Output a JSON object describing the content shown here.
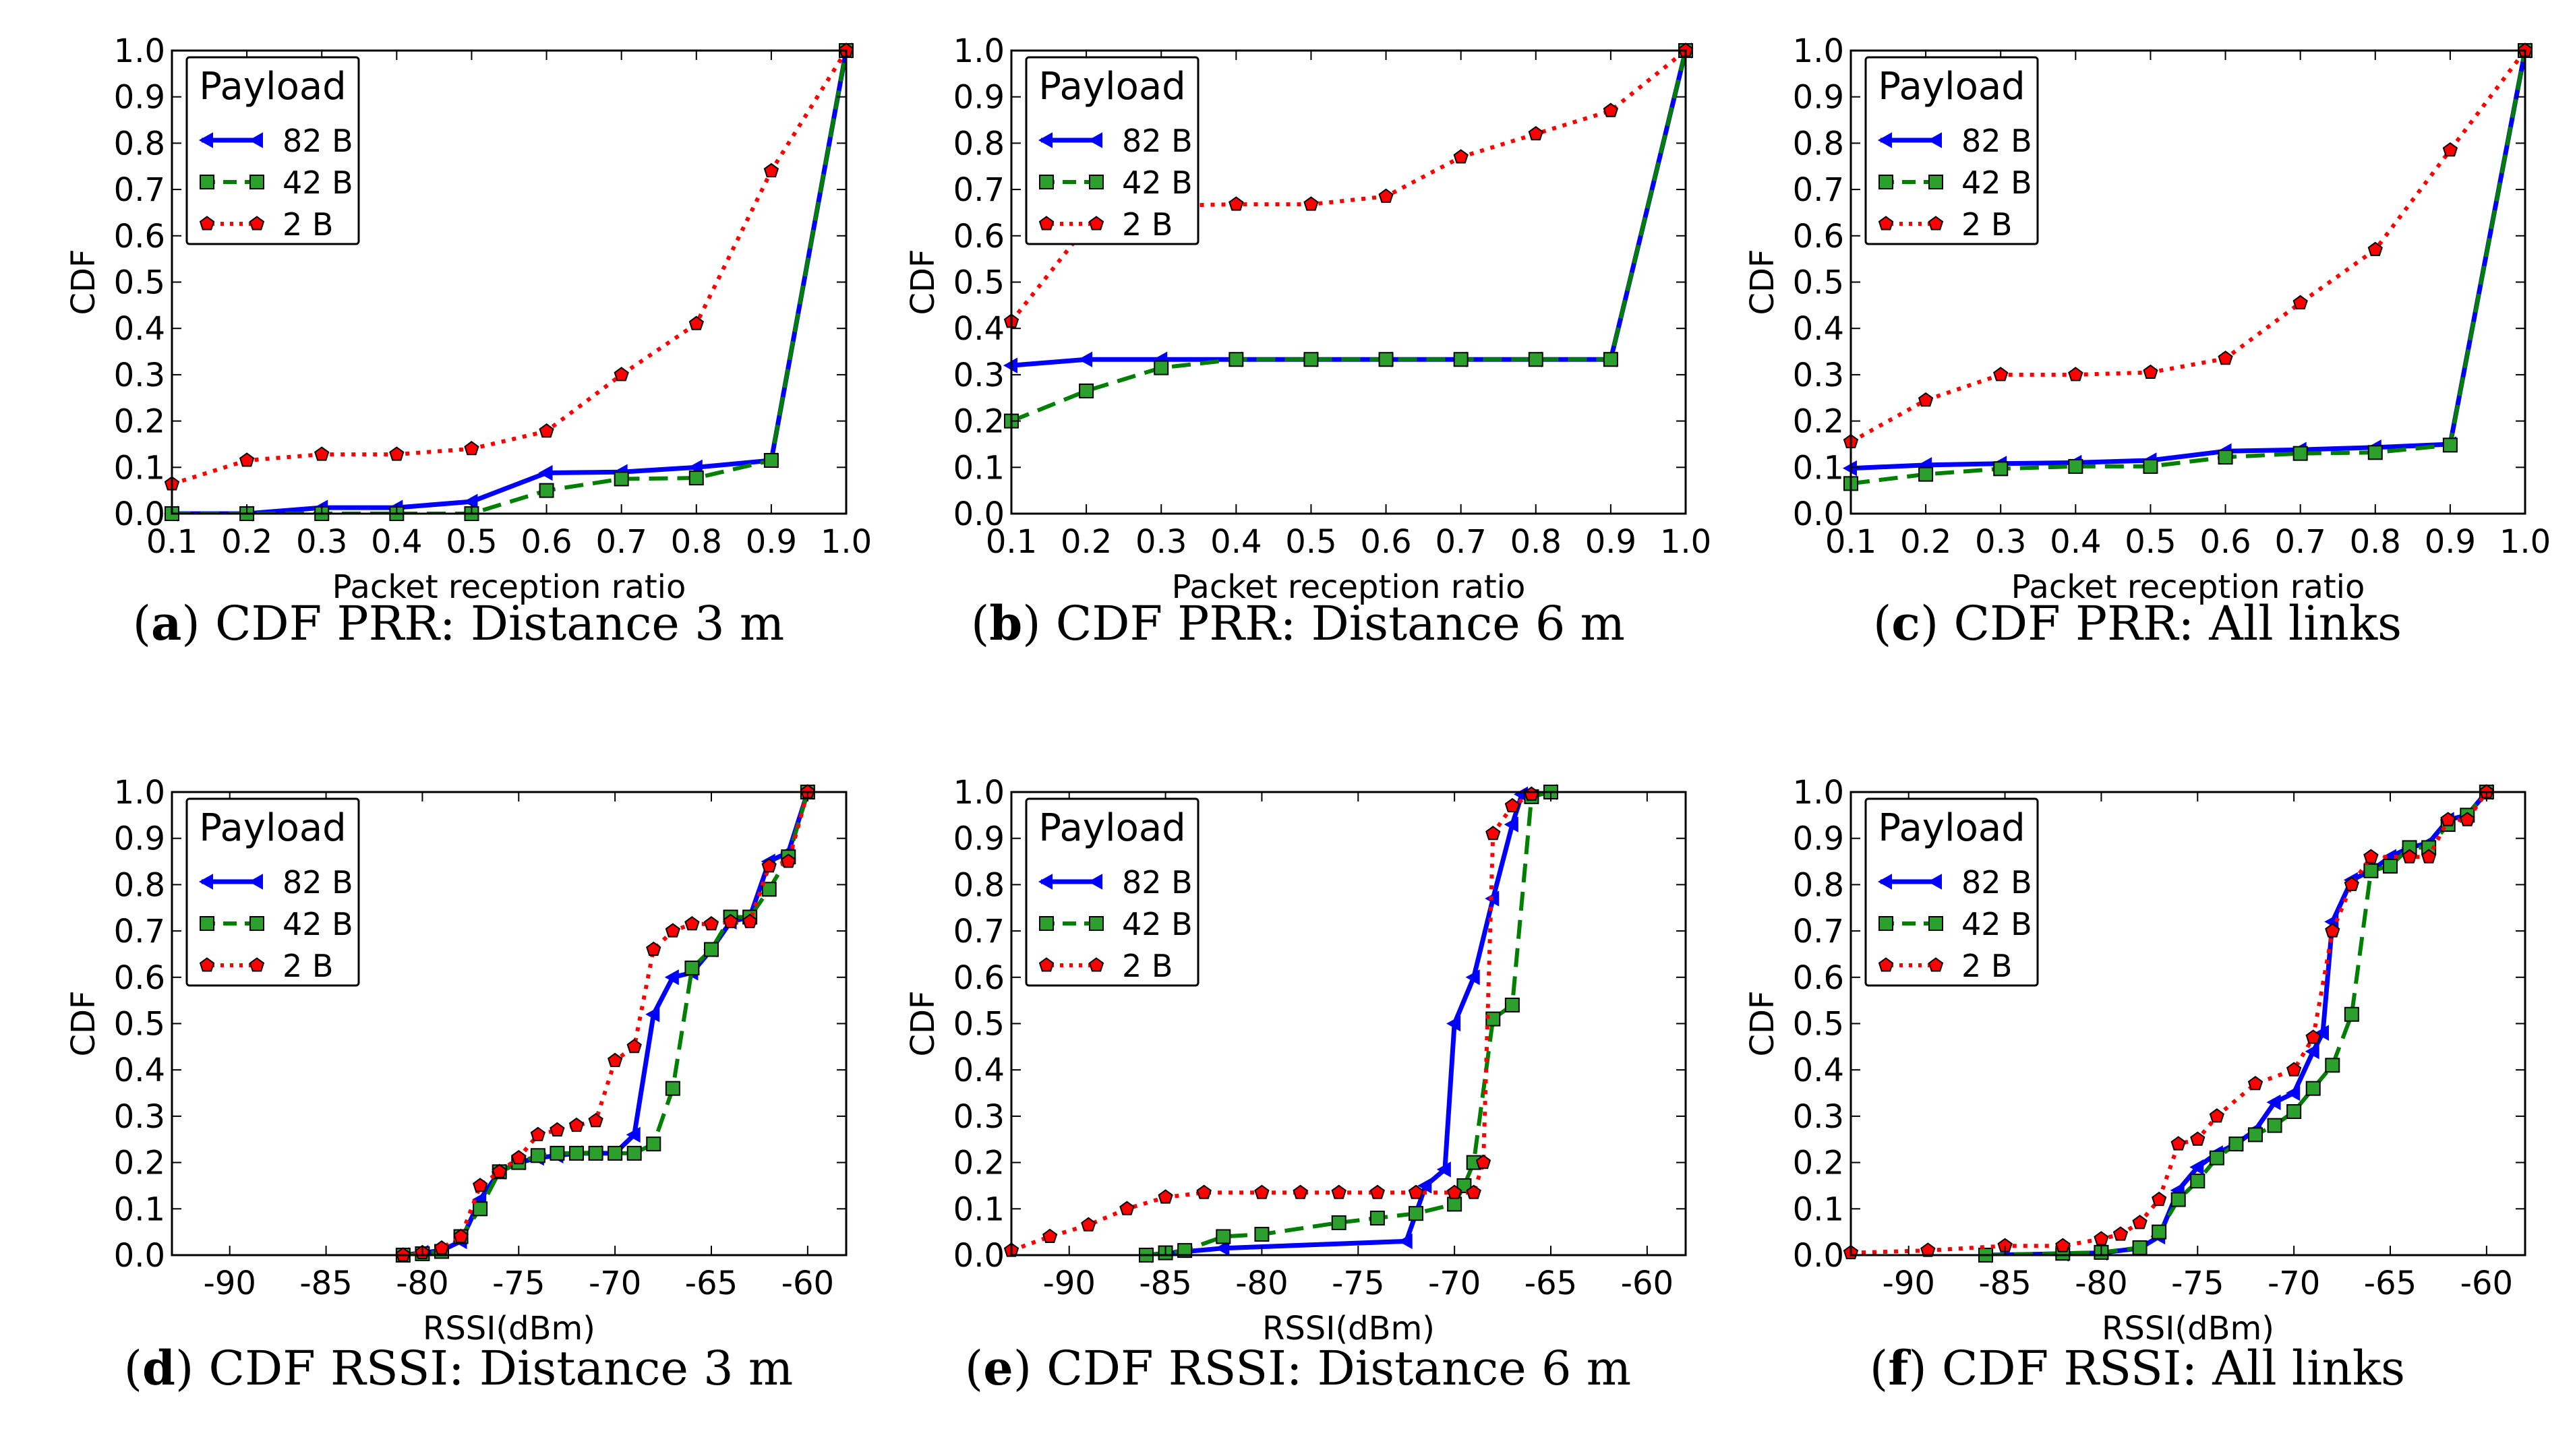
{
  "colors": {
    "s82": "#0000ff",
    "s42": "#007f00",
    "s2": "#ff0000",
    "marker2_face": "#ff0000",
    "marker42_face": "#2ca02c"
  },
  "legend": {
    "title": "Payload"
  },
  "panels": [
    {
      "letter": "a",
      "caption": " CDF PRR: Distance 3 m"
    },
    {
      "letter": "b",
      "caption": " CDF PRR: Distance 6 m"
    },
    {
      "letter": "c",
      "caption": " CDF PRR: All links"
    },
    {
      "letter": "d",
      "caption": " CDF RSSI: Distance 3 m"
    },
    {
      "letter": "e",
      "caption": " CDF RSSI: Distance 6 m"
    },
    {
      "letter": "f",
      "caption": " CDF RSSI: All links"
    }
  ],
  "chart_data": [
    {
      "type": "line",
      "xlabel": "Packet reception ratio",
      "ylabel": "CDF",
      "xlim": [
        0.1,
        1.0
      ],
      "ylim": [
        0.0,
        1.0
      ],
      "xticks": [
        "0.1",
        "0.2",
        "0.3",
        "0.4",
        "0.5",
        "0.6",
        "0.7",
        "0.8",
        "0.9",
        "1.0"
      ],
      "yticks": [
        "0.0",
        "0.1",
        "0.2",
        "0.3",
        "0.4",
        "0.5",
        "0.6",
        "0.7",
        "0.8",
        "0.9",
        "1.0"
      ],
      "legend_position": "top-left",
      "series": [
        {
          "name": "82 B",
          "x": [
            0.1,
            0.2,
            0.3,
            0.4,
            0.5,
            0.6,
            0.7,
            0.8,
            0.9,
            1.0
          ],
          "y": [
            0.0,
            0.0,
            0.013,
            0.013,
            0.026,
            0.088,
            0.09,
            0.1,
            0.115,
            1.0
          ]
        },
        {
          "name": "42 B",
          "x": [
            0.1,
            0.2,
            0.3,
            0.4,
            0.5,
            0.6,
            0.7,
            0.8,
            0.9,
            1.0
          ],
          "y": [
            0.0,
            0.0,
            0.0,
            0.0,
            0.0,
            0.05,
            0.075,
            0.077,
            0.115,
            1.0
          ]
        },
        {
          "name": "2 B",
          "x": [
            0.1,
            0.2,
            0.3,
            0.4,
            0.5,
            0.6,
            0.7,
            0.8,
            0.9,
            1.0
          ],
          "y": [
            0.064,
            0.115,
            0.128,
            0.128,
            0.14,
            0.178,
            0.3,
            0.41,
            0.74,
            1.0
          ]
        }
      ]
    },
    {
      "type": "line",
      "xlabel": "Packet reception ratio",
      "ylabel": "CDF",
      "xlim": [
        0.1,
        1.0
      ],
      "ylim": [
        0.0,
        1.0
      ],
      "xticks": [
        "0.1",
        "0.2",
        "0.3",
        "0.4",
        "0.5",
        "0.6",
        "0.7",
        "0.8",
        "0.9",
        "1.0"
      ],
      "yticks": [
        "0.0",
        "0.1",
        "0.2",
        "0.3",
        "0.4",
        "0.5",
        "0.6",
        "0.7",
        "0.8",
        "0.9",
        "1.0"
      ],
      "legend_position": "top-left",
      "series": [
        {
          "name": "82 B",
          "x": [
            0.1,
            0.2,
            0.3,
            0.4,
            0.5,
            0.6,
            0.7,
            0.8,
            0.9,
            1.0
          ],
          "y": [
            0.32,
            0.333,
            0.333,
            0.333,
            0.333,
            0.333,
            0.333,
            0.333,
            0.333,
            1.0
          ]
        },
        {
          "name": "42 B",
          "x": [
            0.1,
            0.2,
            0.3,
            0.4,
            0.5,
            0.6,
            0.7,
            0.8,
            0.9,
            1.0
          ],
          "y": [
            0.2,
            0.265,
            0.315,
            0.333,
            0.333,
            0.333,
            0.333,
            0.333,
            0.333,
            1.0
          ]
        },
        {
          "name": "2 B",
          "x": [
            0.1,
            0.2,
            0.3,
            0.4,
            0.5,
            0.6,
            0.7,
            0.8,
            0.9,
            1.0
          ],
          "y": [
            0.415,
            0.62,
            0.665,
            0.668,
            0.668,
            0.685,
            0.77,
            0.82,
            0.87,
            1.0
          ]
        }
      ]
    },
    {
      "type": "line",
      "xlabel": "Packet reception ratio",
      "ylabel": "CDF",
      "xlim": [
        0.1,
        1.0
      ],
      "ylim": [
        0.0,
        1.0
      ],
      "xticks": [
        "0.1",
        "0.2",
        "0.3",
        "0.4",
        "0.5",
        "0.6",
        "0.7",
        "0.8",
        "0.9",
        "1.0"
      ],
      "yticks": [
        "0.0",
        "0.1",
        "0.2",
        "0.3",
        "0.4",
        "0.5",
        "0.6",
        "0.7",
        "0.8",
        "0.9",
        "1.0"
      ],
      "legend_position": "top-left",
      "series": [
        {
          "name": "82 B",
          "x": [
            0.1,
            0.2,
            0.3,
            0.4,
            0.5,
            0.6,
            0.7,
            0.8,
            0.9,
            1.0
          ],
          "y": [
            0.098,
            0.105,
            0.108,
            0.11,
            0.115,
            0.135,
            0.138,
            0.143,
            0.15,
            1.0
          ]
        },
        {
          "name": "42 B",
          "x": [
            0.1,
            0.2,
            0.3,
            0.4,
            0.5,
            0.6,
            0.7,
            0.8,
            0.9,
            1.0
          ],
          "y": [
            0.065,
            0.085,
            0.097,
            0.102,
            0.102,
            0.122,
            0.13,
            0.132,
            0.148,
            1.0
          ]
        },
        {
          "name": "2 B",
          "x": [
            0.1,
            0.2,
            0.3,
            0.4,
            0.5,
            0.6,
            0.7,
            0.8,
            0.9,
            1.0
          ],
          "y": [
            0.155,
            0.245,
            0.3,
            0.3,
            0.305,
            0.335,
            0.455,
            0.57,
            0.785,
            1.0
          ]
        }
      ]
    },
    {
      "type": "line",
      "xlabel": "RSSI(dBm)",
      "ylabel": "CDF",
      "xlim": [
        -93,
        -58
      ],
      "ylim": [
        0.0,
        1.0
      ],
      "xticks": [
        "-90",
        "-85",
        "-80",
        "-75",
        "-70",
        "-65",
        "-60"
      ],
      "xtick_values": [
        -90,
        -85,
        -80,
        -75,
        -70,
        -65,
        -60
      ],
      "yticks": [
        "0.0",
        "0.1",
        "0.2",
        "0.3",
        "0.4",
        "0.5",
        "0.6",
        "0.7",
        "0.8",
        "0.9",
        "1.0"
      ],
      "legend_position": "top-left",
      "series": [
        {
          "name": "82 B",
          "x": [
            -81,
            -80,
            -79,
            -78,
            -77,
            -76,
            -75,
            -74,
            -73,
            -72,
            -71,
            -70,
            -69,
            -68,
            -67,
            -66,
            -65,
            -64,
            -63,
            -62,
            -61,
            -60
          ],
          "y": [
            0.0,
            0.005,
            0.01,
            0.03,
            0.12,
            0.18,
            0.2,
            0.21,
            0.215,
            0.22,
            0.22,
            0.22,
            0.26,
            0.52,
            0.6,
            0.61,
            0.66,
            0.72,
            0.73,
            0.85,
            0.87,
            1.0
          ]
        },
        {
          "name": "42 B",
          "x": [
            -81,
            -80,
            -79,
            -78,
            -77,
            -76,
            -75,
            -74,
            -73,
            -72,
            -71,
            -70,
            -69,
            -68,
            -67,
            -66,
            -65,
            -64,
            -63,
            -62,
            -61,
            -60
          ],
          "y": [
            0.0,
            0.003,
            0.008,
            0.04,
            0.1,
            0.18,
            0.2,
            0.215,
            0.22,
            0.22,
            0.22,
            0.22,
            0.22,
            0.24,
            0.36,
            0.62,
            0.66,
            0.73,
            0.73,
            0.79,
            0.86,
            1.0
          ]
        },
        {
          "name": "2 B",
          "x": [
            -81,
            -80,
            -79,
            -78,
            -77,
            -76,
            -75,
            -74,
            -73,
            -72,
            -71,
            -70,
            -69,
            -68,
            -67,
            -66,
            -65,
            -64,
            -63,
            -62,
            -61,
            -60
          ],
          "y": [
            0.0,
            0.005,
            0.015,
            0.04,
            0.15,
            0.18,
            0.21,
            0.26,
            0.27,
            0.28,
            0.29,
            0.42,
            0.45,
            0.66,
            0.7,
            0.715,
            0.715,
            0.72,
            0.72,
            0.84,
            0.85,
            1.0
          ]
        }
      ]
    },
    {
      "type": "line",
      "xlabel": "RSSI(dBm)",
      "ylabel": "CDF",
      "xlim": [
        -93,
        -58
      ],
      "ylim": [
        0.0,
        1.0
      ],
      "xticks": [
        "-90",
        "-85",
        "-80",
        "-75",
        "-70",
        "-65",
        "-60"
      ],
      "xtick_values": [
        -90,
        -85,
        -80,
        -75,
        -70,
        -65,
        -60
      ],
      "yticks": [
        "0.0",
        "0.1",
        "0.2",
        "0.3",
        "0.4",
        "0.5",
        "0.6",
        "0.7",
        "0.8",
        "0.9",
        "1.0"
      ],
      "legend_position": "top-left",
      "series": [
        {
          "name": "82 B",
          "x": [
            -86,
            -82,
            -72.5,
            -71.5,
            -70.5,
            -70,
            -69,
            -68,
            -67,
            -66.5,
            -65
          ],
          "y": [
            0.0,
            0.015,
            0.03,
            0.15,
            0.185,
            0.5,
            0.6,
            0.77,
            0.93,
            0.995,
            1.0
          ]
        },
        {
          "name": "42 B",
          "x": [
            -86,
            -85,
            -84,
            -82,
            -80,
            -76,
            -74,
            -72,
            -70,
            -69.5,
            -69,
            -68,
            -67,
            -66,
            -65
          ],
          "y": [
            0.0,
            0.005,
            0.01,
            0.04,
            0.045,
            0.07,
            0.08,
            0.09,
            0.11,
            0.15,
            0.2,
            0.51,
            0.54,
            0.99,
            1.0
          ]
        },
        {
          "name": "2 B",
          "x": [
            -93,
            -91,
            -89,
            -87,
            -85,
            -83,
            -80,
            -78,
            -76,
            -74,
            -72,
            -70,
            -69,
            -68.5,
            -68,
            -67,
            -66
          ],
          "y": [
            0.01,
            0.04,
            0.065,
            0.1,
            0.125,
            0.135,
            0.135,
            0.135,
            0.135,
            0.135,
            0.135,
            0.135,
            0.135,
            0.2,
            0.91,
            0.97,
            0.995
          ]
        }
      ]
    },
    {
      "type": "line",
      "xlabel": "RSSI(dBm)",
      "ylabel": "CDF",
      "xlim": [
        -93,
        -58
      ],
      "ylim": [
        0.0,
        1.0
      ],
      "xticks": [
        "-90",
        "-85",
        "-80",
        "-75",
        "-70",
        "-65",
        "-60"
      ],
      "xtick_values": [
        -90,
        -85,
        -80,
        -75,
        -70,
        -65,
        -60
      ],
      "yticks": [
        "0.0",
        "0.1",
        "0.2",
        "0.3",
        "0.4",
        "0.5",
        "0.6",
        "0.7",
        "0.8",
        "0.9",
        "1.0"
      ],
      "legend_position": "top-left",
      "series": [
        {
          "name": "82 B",
          "x": [
            -86,
            -82,
            -80,
            -78,
            -77,
            -76,
            -75,
            -74,
            -73,
            -72,
            -71,
            -70,
            -69,
            -68.5,
            -68,
            -67,
            -66,
            -65,
            -64,
            -63,
            -62,
            -61,
            -60
          ],
          "y": [
            0.0,
            0.003,
            0.005,
            0.015,
            0.04,
            0.14,
            0.19,
            0.22,
            0.24,
            0.27,
            0.33,
            0.35,
            0.44,
            0.48,
            0.72,
            0.81,
            0.83,
            0.86,
            0.88,
            0.89,
            0.94,
            0.95,
            1.0
          ]
        },
        {
          "name": "42 B",
          "x": [
            -86,
            -82,
            -80,
            -78,
            -77,
            -76,
            -75,
            -74,
            -73,
            -72,
            -71,
            -70,
            -69,
            -68,
            -67,
            -66,
            -65,
            -64,
            -63,
            -62,
            -61,
            -60
          ],
          "y": [
            0.0,
            0.004,
            0.006,
            0.016,
            0.05,
            0.12,
            0.16,
            0.21,
            0.24,
            0.26,
            0.28,
            0.31,
            0.36,
            0.41,
            0.52,
            0.83,
            0.84,
            0.88,
            0.88,
            0.93,
            0.95,
            1.0
          ]
        },
        {
          "name": "2 B",
          "x": [
            -93,
            -89,
            -85,
            -82,
            -80,
            -79,
            -78,
            -77,
            -76,
            -75,
            -74,
            -72,
            -70,
            -69,
            -68,
            -67,
            -66,
            -64,
            -63,
            -62,
            -61,
            -60
          ],
          "y": [
            0.005,
            0.01,
            0.02,
            0.02,
            0.035,
            0.045,
            0.07,
            0.12,
            0.24,
            0.25,
            0.3,
            0.37,
            0.4,
            0.47,
            0.7,
            0.8,
            0.86,
            0.86,
            0.86,
            0.94,
            0.94,
            1.0
          ]
        }
      ]
    }
  ]
}
